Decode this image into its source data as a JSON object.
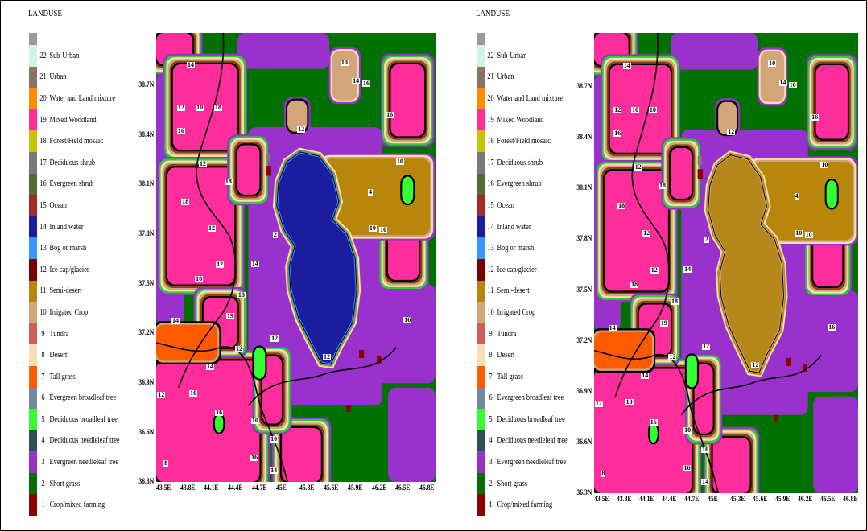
{
  "panels": [
    {
      "legend_title": "LANDUSE",
      "legend_cap_color": "#9a9a9a",
      "legend": [
        {
          "code": "22",
          "label": "Sub-Urban",
          "color": "#d2f3e3"
        },
        {
          "code": "21",
          "label": "Urban",
          "color": "#8c7262"
        },
        {
          "code": "20",
          "label": "Water and Land mixture",
          "color": "#ff8c00"
        },
        {
          "code": "19",
          "label": "Mixed Woodland",
          "color": "#ff2d9b"
        },
        {
          "code": "18",
          "label": "Forest/Field mosaic",
          "color": "#c9c400"
        },
        {
          "code": "17",
          "label": "Deciduous shrub",
          "color": "#7a7a7a"
        },
        {
          "code": "16",
          "label": "Evergreen shrub",
          "color": "#556b2f"
        },
        {
          "code": "15",
          "label": "Ocean",
          "color": "#a52a2a"
        },
        {
          "code": "14",
          "label": "Inland water",
          "color": "#1c1c9e"
        },
        {
          "code": "13",
          "label": "Bog or marsh",
          "color": "#3399ff"
        },
        {
          "code": "12",
          "label": "Ice cap/glacier",
          "color": "#7a0000"
        },
        {
          "code": "11",
          "label": "Semi-desert",
          "color": "#b8860b"
        },
        {
          "code": "10",
          "label": "Irrigated Crop",
          "color": "#d2a679"
        },
        {
          "code": "9",
          "label": "Tundra",
          "color": "#cd5c5c"
        },
        {
          "code": "8",
          "label": "Desert",
          "color": "#f5deb3"
        },
        {
          "code": "7",
          "label": "Tall grass",
          "color": "#ff5a00"
        },
        {
          "code": "6",
          "label": "Evergreen broadleaf tree",
          "color": "#778899"
        },
        {
          "code": "5",
          "label": "Deciduous broadleaf tree",
          "color": "#33ff33"
        },
        {
          "code": "4",
          "label": "Deciduous needleleaf tree",
          "color": "#2f4f4f"
        },
        {
          "code": "3",
          "label": "Evergreen needleleaf tree",
          "color": "#9932cc"
        },
        {
          "code": "2",
          "label": "Short grass",
          "color": "#007000"
        },
        {
          "code": "1",
          "label": "Crop/mixed farming",
          "color": "#8b0000"
        }
      ],
      "y_ticks": [
        "38.7N",
        "38.4N",
        "38.1N",
        "37.8N",
        "37.5N",
        "37.2N",
        "36.9N",
        "36.6N",
        "36.3N"
      ],
      "x_ticks": [
        "43.5E",
        "43.8E",
        "44.1E",
        "44.4E",
        "44.7E",
        "45E",
        "45.3E",
        "45.6E",
        "45.9E",
        "46.2E",
        "46.5E",
        "46.8E"
      ],
      "lake_color": "#1c1c9e",
      "lake_edge_color": "#3399ff",
      "contour_labels": [
        "14",
        "10",
        "14",
        "16",
        "16",
        "12",
        "10",
        "18",
        "16",
        "12",
        "12",
        "18",
        "10",
        "4",
        "10",
        "18",
        "12",
        "14",
        "12",
        "18",
        "18",
        "14",
        "19",
        "12",
        "12",
        "12",
        "14",
        "10",
        "16",
        "10",
        "10",
        "16",
        "14",
        "12",
        "8",
        "16",
        "2",
        "10"
      ]
    },
    {
      "legend_title": "LANDUSE",
      "legend_cap_color": "#9a9a9a",
      "legend": [
        {
          "code": "22",
          "label": "Sub-Urban",
          "color": "#d2f3e3"
        },
        {
          "code": "21",
          "label": "Urban",
          "color": "#8c7262"
        },
        {
          "code": "20",
          "label": "Water and Land mixture",
          "color": "#ff8c00"
        },
        {
          "code": "19",
          "label": "Mixed Woodland",
          "color": "#ff2d9b"
        },
        {
          "code": "18",
          "label": "Forest/Field mosaic",
          "color": "#c9c400"
        },
        {
          "code": "17",
          "label": "Deciduous shrub",
          "color": "#7a7a7a"
        },
        {
          "code": "16",
          "label": "Evergreen shrub",
          "color": "#556b2f"
        },
        {
          "code": "15",
          "label": "Ocean",
          "color": "#a52a2a"
        },
        {
          "code": "14",
          "label": "Inland water",
          "color": "#1c1c9e"
        },
        {
          "code": "13",
          "label": "Bog or marsh",
          "color": "#3399ff"
        },
        {
          "code": "12",
          "label": "Ice cap/glacier",
          "color": "#7a0000"
        },
        {
          "code": "11",
          "label": "Semi-desert",
          "color": "#b8860b"
        },
        {
          "code": "10",
          "label": "Irrigated Crop",
          "color": "#d2a679"
        },
        {
          "code": "9",
          "label": "Tundra",
          "color": "#cd5c5c"
        },
        {
          "code": "8",
          "label": "Desert",
          "color": "#f5deb3"
        },
        {
          "code": "7",
          "label": "Tall grass",
          "color": "#ff5a00"
        },
        {
          "code": "6",
          "label": "Evergreen broadleaf tree",
          "color": "#778899"
        },
        {
          "code": "5",
          "label": "Deciduous broadleaf tree",
          "color": "#33ff33"
        },
        {
          "code": "4",
          "label": "Deciduous needleleaf tree",
          "color": "#2f4f4f"
        },
        {
          "code": "3",
          "label": "Evergreen needleleaf tree",
          "color": "#9932cc"
        },
        {
          "code": "2",
          "label": "Short grass",
          "color": "#007000"
        },
        {
          "code": "1",
          "label": "Crop/mixed farming",
          "color": "#8b0000"
        }
      ],
      "y_ticks": [
        "38.7N",
        "38.4N",
        "38.1N",
        "37.8N",
        "37.5N",
        "37.2N",
        "36.9N",
        "36.6N",
        "36.3N"
      ],
      "x_ticks": [
        "43.5E",
        "43.8E",
        "44.1E",
        "44.4E",
        "44.7E",
        "45E",
        "45.3E",
        "45.6E",
        "45.9E",
        "46.2E",
        "46.5E",
        "46.8E"
      ],
      "lake_color": "#b5861a",
      "lake_edge_color": "#d2a679",
      "contour_labels": [
        "14",
        "10",
        "14",
        "16",
        "16",
        "12",
        "10",
        "18",
        "16",
        "12",
        "12",
        "18",
        "10",
        "4",
        "10",
        "18",
        "12",
        "14",
        "12",
        "18",
        "18",
        "14",
        "19",
        "12",
        "12",
        "12",
        "14",
        "10",
        "16",
        "10",
        "10",
        "16",
        "14",
        "12",
        "8",
        "16",
        "2",
        "10"
      ]
    }
  ]
}
